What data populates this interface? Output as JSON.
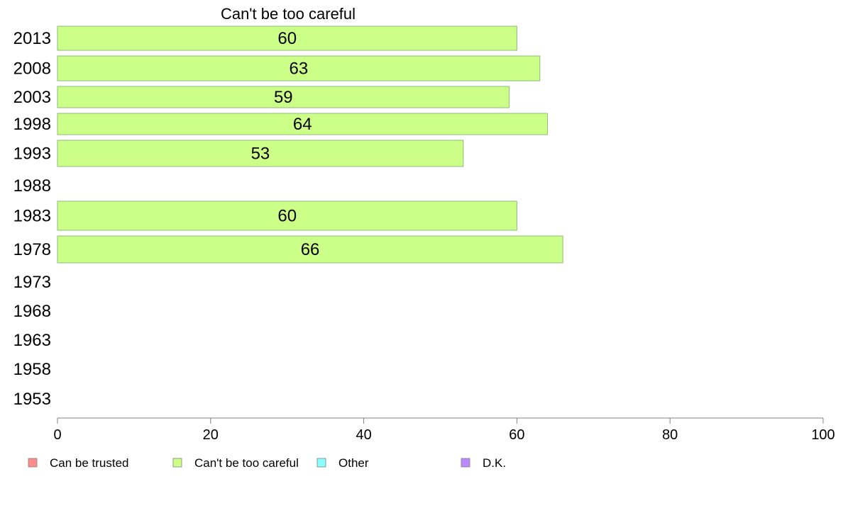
{
  "chart_data": {
    "type": "bar",
    "title": "Can't be too careful",
    "xlabel": "",
    "ylabel": "",
    "xlim": [
      0,
      100
    ],
    "x_ticks": [
      "0",
      "20",
      "40",
      "60",
      "80",
      "100"
    ],
    "categories": [
      "2013",
      "2008",
      "2003",
      "1998",
      "1993",
      "1988",
      "1983",
      "1978",
      "1973",
      "1968",
      "1963",
      "1958",
      "1953"
    ],
    "series": [
      {
        "name": "Can't be too careful",
        "color": "#ccff88",
        "values": [
          60,
          63,
          59,
          64,
          53,
          null,
          60,
          66,
          null,
          null,
          null,
          null,
          null
        ],
        "labels": [
          "60",
          "63",
          "59",
          "64",
          "53",
          "",
          "60",
          "66",
          "",
          "",
          "",
          "",
          ""
        ]
      }
    ],
    "legend": {
      "position": "bottom",
      "items": [
        {
          "label": "Can be trusted",
          "color": "#ff8c8c"
        },
        {
          "label": "Can't be too careful",
          "color": "#ccff88"
        },
        {
          "label": "Other",
          "color": "#88ffff"
        },
        {
          "label": "D.K.",
          "color": "#bb88ff"
        }
      ]
    },
    "grid": false
  }
}
